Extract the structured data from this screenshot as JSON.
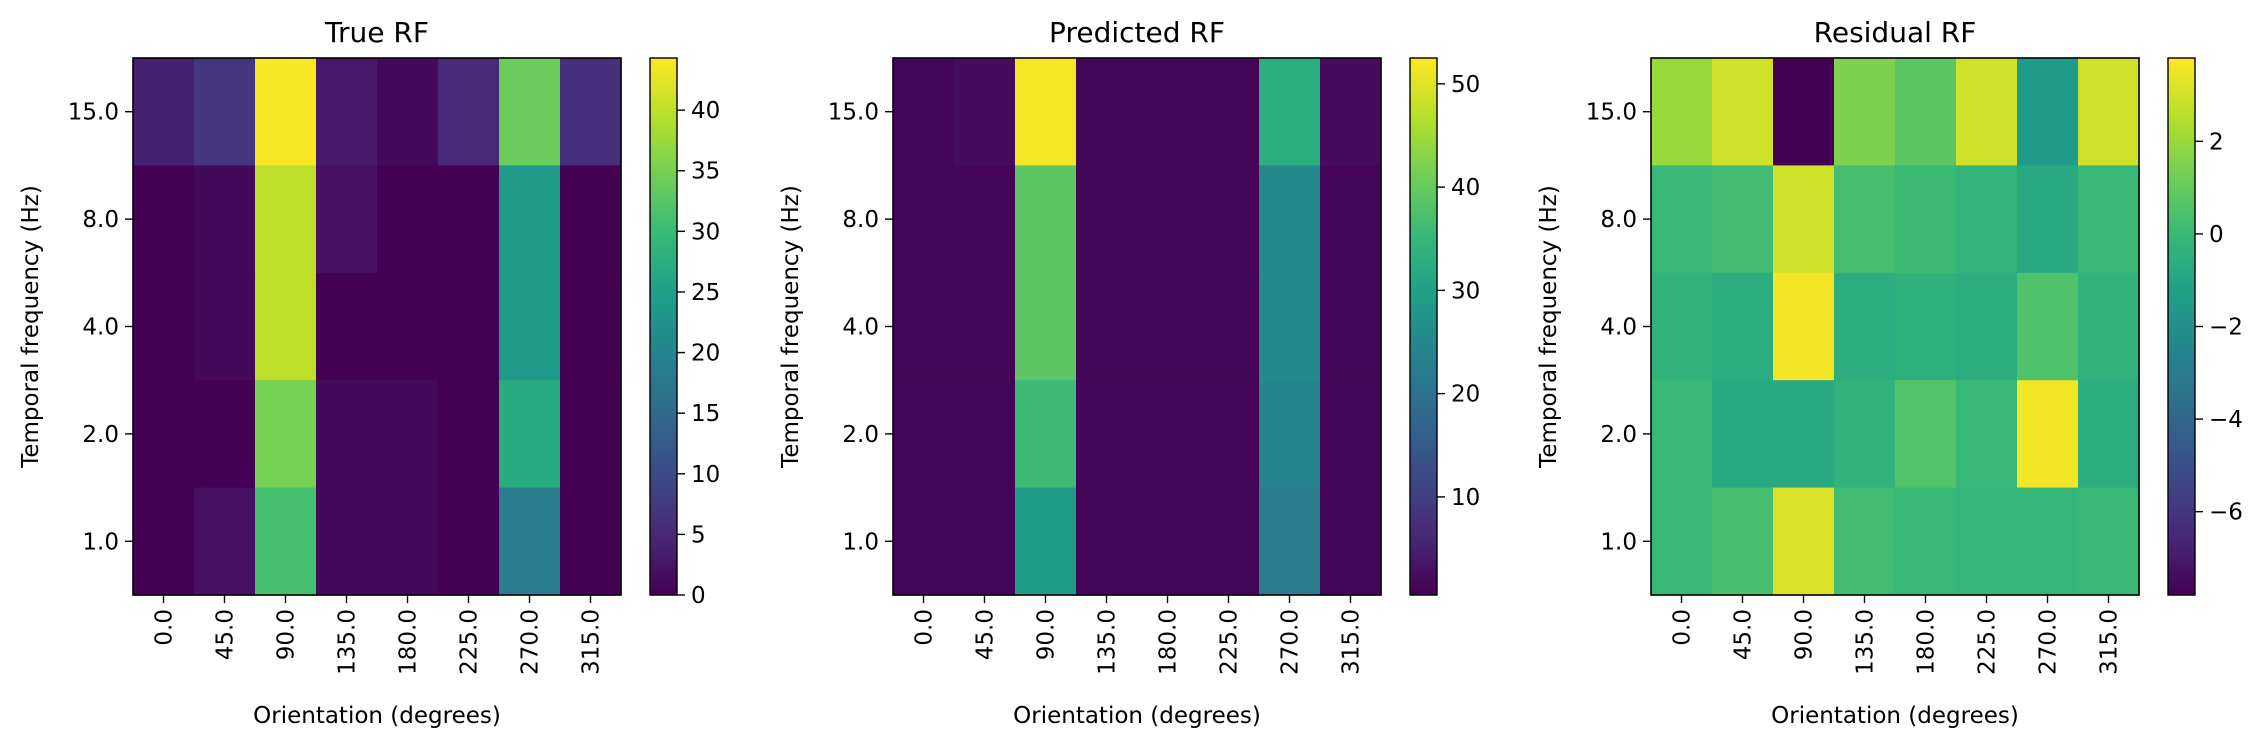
{
  "chart_data": [
    {
      "type": "heatmap",
      "title": "True RF",
      "xlabel": "Orientation (degrees)",
      "ylabel": "Temporal frequency (Hz)",
      "x": [
        "0.0",
        "45.0",
        "90.0",
        "135.0",
        "180.0",
        "225.0",
        "270.0",
        "315.0"
      ],
      "y": [
        "15.0",
        "8.0",
        "4.0",
        "2.0",
        "1.0"
      ],
      "values": [
        [
          4,
          7,
          44,
          3,
          1,
          5,
          34,
          6
        ],
        [
          0,
          1,
          40,
          2,
          0,
          0,
          24,
          0
        ],
        [
          0,
          1,
          40,
          0,
          0,
          0,
          24,
          0
        ],
        [
          0,
          0,
          35,
          1,
          1,
          0,
          27,
          0
        ],
        [
          0,
          2,
          31,
          1,
          1,
          0,
          19,
          0
        ]
      ],
      "colorbar": {
        "ticks": [
          0,
          5,
          10,
          15,
          20,
          25,
          30,
          35,
          40
        ],
        "vmin": 0,
        "vmax": 44.3
      },
      "colormap": "viridis"
    },
    {
      "type": "heatmap",
      "title": "Predicted RF",
      "xlabel": "Orientation (degrees)",
      "ylabel": "Temporal frequency (Hz)",
      "x": [
        "0.0",
        "45.0",
        "90.0",
        "135.0",
        "180.0",
        "225.0",
        "270.0",
        "315.0"
      ],
      "y": [
        "15.0",
        "8.0",
        "4.0",
        "2.0",
        "1.0"
      ],
      "values": [
        [
          1,
          2,
          52,
          1,
          1,
          1,
          33,
          2
        ],
        [
          1,
          1,
          39,
          1,
          1,
          1,
          25,
          1
        ],
        [
          1,
          1,
          39,
          1,
          1,
          1,
          25,
          1
        ],
        [
          1,
          1,
          36,
          1,
          1,
          1,
          24,
          1
        ],
        [
          1,
          1,
          29,
          1,
          1,
          1,
          22,
          1
        ]
      ],
      "colorbar": {
        "ticks": [
          10,
          20,
          30,
          40,
          50
        ],
        "vmin": 0.5,
        "vmax": 52.5
      },
      "colormap": "viridis"
    },
    {
      "type": "heatmap",
      "title": "Residual RF",
      "xlabel": "Orientation (degrees)",
      "ylabel": "Temporal frequency (Hz)",
      "x": [
        "0.0",
        "45.0",
        "90.0",
        "135.0",
        "180.0",
        "225.0",
        "270.0",
        "315.0"
      ],
      "y": [
        "15.0",
        "8.0",
        "4.0",
        "2.0",
        "1.0"
      ],
      "values": [
        [
          2.0,
          3.0,
          -7.8,
          1.5,
          0.8,
          3.0,
          -1.5,
          3.0
        ],
        [
          0.0,
          0.2,
          3.0,
          0.3,
          0.1,
          -0.2,
          -0.8,
          0.0
        ],
        [
          -0.3,
          -0.6,
          3.6,
          -0.6,
          -0.4,
          -0.6,
          0.5,
          -0.3
        ],
        [
          0.0,
          -0.8,
          -0.8,
          -0.3,
          0.6,
          0.0,
          3.6,
          -0.6
        ],
        [
          0.0,
          0.3,
          3.2,
          0.2,
          0.0,
          -0.1,
          -0.1,
          0.0
        ]
      ],
      "colorbar": {
        "ticks": [
          -6,
          -4,
          -2,
          0,
          2
        ],
        "vmin": -7.8,
        "vmax": 3.8
      },
      "colormap": "viridis"
    }
  ]
}
